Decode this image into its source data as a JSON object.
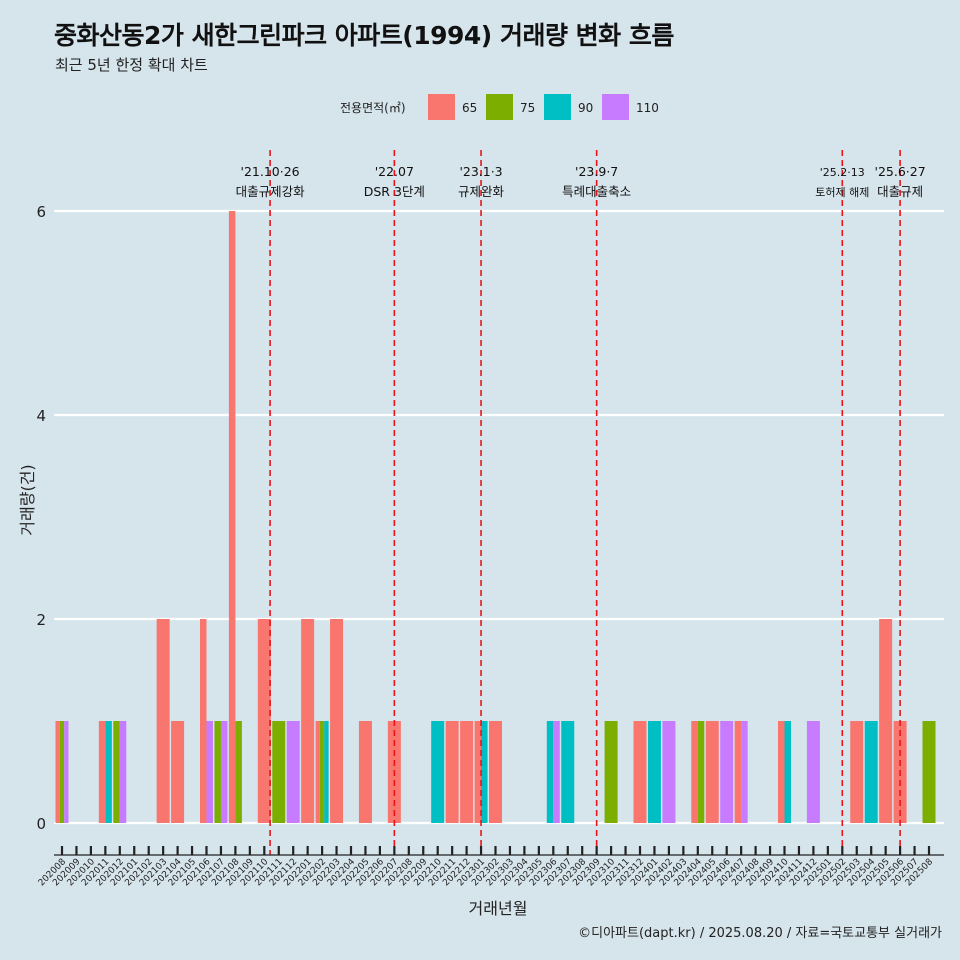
{
  "header": {
    "title": "중화산동2가 새한그린파크 아파트(1994) 거래량 변화 흐름",
    "subtitle": "최근 5년 한정 확대 차트",
    "caption": "©디아파트(dapt.kr) / 2025.08.20 / 자료=국토교통부 실거래가"
  },
  "colors": {
    "65": "#f8766d",
    "75": "#7cae00",
    "90": "#00bfc4",
    "110": "#c77cff",
    "background": "#d6e4ec",
    "grid": "#ffffff",
    "event_line": "#e8141b"
  },
  "chart_data": {
    "type": "bar",
    "xlabel": "거래년월",
    "ylabel": "거래량(건)",
    "ylim": [
      0,
      6
    ],
    "yticks": [
      0,
      2,
      4,
      6
    ],
    "grid": true,
    "legend": {
      "title": "전용면적(㎡)",
      "position": "top",
      "entries": [
        "65",
        "75",
        "90",
        "110"
      ]
    },
    "categories": [
      "202008",
      "202009",
      "202010",
      "202011",
      "202012",
      "202101",
      "202102",
      "202103",
      "202104",
      "202105",
      "202106",
      "202107",
      "202108",
      "202109",
      "202110",
      "202111",
      "202112",
      "202201",
      "202202",
      "202203",
      "202204",
      "202205",
      "202206",
      "202207",
      "202208",
      "202209",
      "202210",
      "202211",
      "202212",
      "202301",
      "202302",
      "202303",
      "202304",
      "202305",
      "202306",
      "202307",
      "202308",
      "202309",
      "202310",
      "202311",
      "202312",
      "202401",
      "202402",
      "202403",
      "202404",
      "202405",
      "202406",
      "202407",
      "202408",
      "202409",
      "202410",
      "202411",
      "202412",
      "202501",
      "202502",
      "202503",
      "202504",
      "202505",
      "202506",
      "202507",
      "202508"
    ],
    "series": [
      {
        "name": "65",
        "values": [
          1,
          0,
          0,
          1,
          0,
          0,
          0,
          2,
          1,
          0,
          2,
          0,
          6,
          0,
          2,
          0,
          0,
          2,
          1,
          2,
          0,
          1,
          0,
          1,
          0,
          0,
          0,
          1,
          1,
          1,
          1,
          0,
          0,
          0,
          0,
          0,
          0,
          0,
          0,
          0,
          1,
          0,
          0,
          0,
          1,
          1,
          0,
          1,
          0,
          0,
          1,
          0,
          0,
          0,
          0,
          1,
          0,
          2,
          1,
          0,
          0
        ]
      },
      {
        "name": "75",
        "values": [
          1,
          0,
          0,
          0,
          1,
          0,
          0,
          0,
          0,
          0,
          0,
          1,
          1,
          0,
          0,
          1,
          0,
          0,
          1,
          0,
          0,
          0,
          0,
          0,
          0,
          0,
          0,
          0,
          0,
          0,
          0,
          0,
          0,
          0,
          0,
          0,
          0,
          0,
          1,
          0,
          0,
          0,
          0,
          0,
          1,
          0,
          0,
          0,
          0,
          0,
          0,
          0,
          0,
          0,
          0,
          0,
          0,
          0,
          0,
          0,
          1
        ]
      },
      {
        "name": "90",
        "values": [
          0,
          0,
          0,
          1,
          0,
          0,
          0,
          0,
          0,
          0,
          0,
          0,
          0,
          0,
          0,
          0,
          0,
          0,
          1,
          0,
          0,
          0,
          0,
          0,
          0,
          0,
          1,
          0,
          0,
          1,
          0,
          0,
          0,
          0,
          1,
          1,
          0,
          0,
          0,
          0,
          0,
          1,
          0,
          0,
          0,
          0,
          0,
          0,
          0,
          0,
          1,
          0,
          0,
          0,
          0,
          0,
          1,
          0,
          0,
          0,
          0
        ]
      },
      {
        "name": "110",
        "values": [
          1,
          0,
          0,
          0,
          1,
          0,
          0,
          0,
          0,
          0,
          1,
          1,
          0,
          0,
          0,
          0,
          1,
          0,
          0,
          0,
          0,
          0,
          0,
          0,
          0,
          0,
          0,
          0,
          0,
          0,
          0,
          0,
          0,
          0,
          1,
          0,
          0,
          0,
          0,
          0,
          0,
          0,
          1,
          0,
          0,
          0,
          1,
          1,
          0,
          0,
          0,
          0,
          1,
          0,
          0,
          0,
          0,
          0,
          0,
          0,
          0
        ]
      }
    ],
    "events": [
      {
        "date": "'21.10·26",
        "label": "대출규제강화",
        "category_index": 14.4
      },
      {
        "date": "'22.07",
        "label": "DSR 3단계",
        "category_index": 23.0
      },
      {
        "date": "'23.1·3",
        "label": "규제완화",
        "category_index": 29.0
      },
      {
        "date": "'23.9·7",
        "label": "특례대출축소",
        "category_index": 37.0
      },
      {
        "date": "'25.2·13",
        "label": "토허제 해제",
        "category_index": 54.0,
        "small": true
      },
      {
        "date": "'25.6·27",
        "label": "대출규제",
        "category_index": 58.0
      }
    ]
  }
}
